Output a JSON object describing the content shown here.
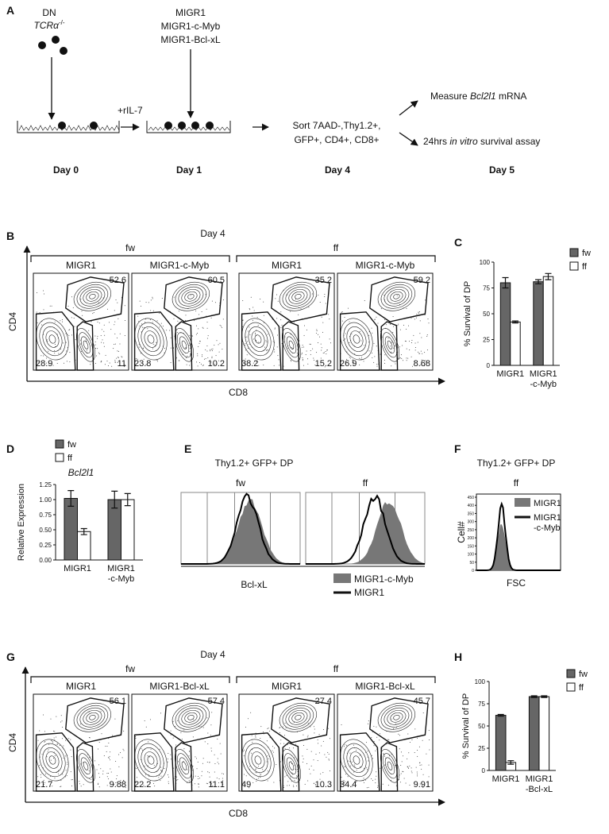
{
  "figure": {
    "A": {
      "label": "A",
      "cells": "DN",
      "genotype": "TCRα",
      "genotype_sup": "-/-",
      "cytokine": "+rIL-7",
      "vectors": [
        "MIGR1",
        "MIGR1-c-Myb",
        "MIGR1-Bcl-xL"
      ],
      "sort": [
        "Sort 7AAD-,Thy1.2+,",
        "GFP+, CD4+, CD8+"
      ],
      "readout1": [
        "Measure ",
        "Bcl2l1",
        " mRNA"
      ],
      "readout2": [
        "24hrs ",
        "in vitro",
        " survival assay"
      ],
      "days": [
        "Day 0",
        "Day 1",
        "Day 4",
        "Day 5"
      ]
    },
    "B": {
      "label": "B",
      "title": "Day 4",
      "y_label": "CD4",
      "x_label": "CD8",
      "groups": [
        {
          "name": "fw",
          "plots": [
            {
              "name": "MIGR1",
              "dp": 52.6,
              "dn": 28.9,
              "sp8": 11
            },
            {
              "name": "MIGR1-c-Myb",
              "dp": 60.5,
              "dn": 23.8,
              "sp8": 10.2
            }
          ]
        },
        {
          "name": "ff",
          "plots": [
            {
              "name": "MIGR1",
              "dp": 35.2,
              "dn": 38.2,
              "sp8": 15.2
            },
            {
              "name": "MIGR1-c-Myb",
              "dp": 59.2,
              "dn": 26.9,
              "sp8": 8.68
            }
          ]
        }
      ]
    },
    "E": {
      "label": "E",
      "title": "Thy1.2+  GFP+  DP",
      "facets": [
        "fw",
        "ff"
      ],
      "x_label": "Bcl-xL",
      "legend": [
        "MIGR1-c-Myb",
        "MIGR1"
      ]
    },
    "F": {
      "label": "F",
      "title": "Thy1.2+ GFP+ DP",
      "facet": "ff",
      "y_label": "Cell#",
      "x_label": "FSC",
      "yticks": [
        0,
        50,
        100,
        150,
        200,
        250,
        300,
        350,
        400,
        450
      ],
      "legend": [
        [
          "MIGR1"
        ],
        [
          "MIGR1",
          "-c-Myb"
        ]
      ]
    },
    "G": {
      "label": "G",
      "title": "Day 4",
      "y_label": "CD4",
      "x_label": "CD8",
      "groups": [
        {
          "name": "fw",
          "plots": [
            {
              "name": "MIGR1",
              "dp": 56.1,
              "dn": 21.7,
              "sp8": 9.88
            },
            {
              "name": "MIGR1-Bcl-xL",
              "dp": 57.4,
              "dn": 22.2,
              "sp8": 11.1
            }
          ]
        },
        {
          "name": "ff",
          "plots": [
            {
              "name": "MIGR1",
              "dp": 27.4,
              "dn": 49,
              "sp8": 10.3
            },
            {
              "name": "MIGR1-Bcl-xL",
              "dp": 45.7,
              "dn": 34.4,
              "sp8": 9.91
            }
          ]
        }
      ]
    }
  },
  "chart_data": [
    {
      "panel": "C",
      "type": "bar",
      "y_label": "% Survival of DP",
      "categories": [
        [
          "MIGR1"
        ],
        [
          "MIGR1",
          "-c-Myb"
        ]
      ],
      "series": [
        {
          "name": "fw",
          "color": "#666666",
          "values": [
            80,
            81
          ],
          "errors": [
            5,
            2
          ]
        },
        {
          "name": "ff",
          "color": "#ffffff",
          "values": [
            42,
            86
          ],
          "errors": [
            1,
            3
          ]
        }
      ],
      "ylim": [
        0,
        100
      ],
      "yticks": [
        0,
        25,
        50,
        75,
        100
      ]
    },
    {
      "panel": "D",
      "type": "bar",
      "title": "Bcl2l1",
      "y_label": "Relative Expression",
      "categories": [
        [
          "MIGR1"
        ],
        [
          "MIGR1",
          "-c-Myb"
        ]
      ],
      "series": [
        {
          "name": "fw",
          "color": "#666666",
          "values": [
            1.02,
            1.0
          ],
          "errors": [
            0.13,
            0.14
          ]
        },
        {
          "name": "ff",
          "color": "#ffffff",
          "values": [
            0.47,
            1.0
          ],
          "errors": [
            0.05,
            0.1
          ]
        }
      ],
      "ylim": [
        0,
        1.25
      ],
      "yticks": [
        {
          "value": 0,
          "label": "0.00"
        },
        {
          "value": 0.25,
          "label": "0.25"
        },
        {
          "value": 0.5,
          "label": "0.50"
        },
        {
          "value": 0.75,
          "label": "0.75"
        },
        {
          "value": 1,
          "label": "1.00"
        },
        {
          "value": 1.25,
          "label": "1.25"
        }
      ]
    },
    {
      "panel": "H",
      "type": "bar",
      "y_label": "% Survival of DP",
      "categories": [
        [
          "MIGR1"
        ],
        [
          "MIGR1",
          "-Bcl-xL"
        ]
      ],
      "series": [
        {
          "name": "fw",
          "color": "#666666",
          "values": [
            62,
            83
          ],
          "errors": [
            1,
            1
          ]
        },
        {
          "name": "ff",
          "color": "#ffffff",
          "values": [
            9,
            83
          ],
          "errors": [
            2,
            1
          ]
        }
      ],
      "ylim": [
        0,
        100
      ],
      "yticks": [
        0,
        25,
        50,
        75,
        100
      ]
    }
  ]
}
